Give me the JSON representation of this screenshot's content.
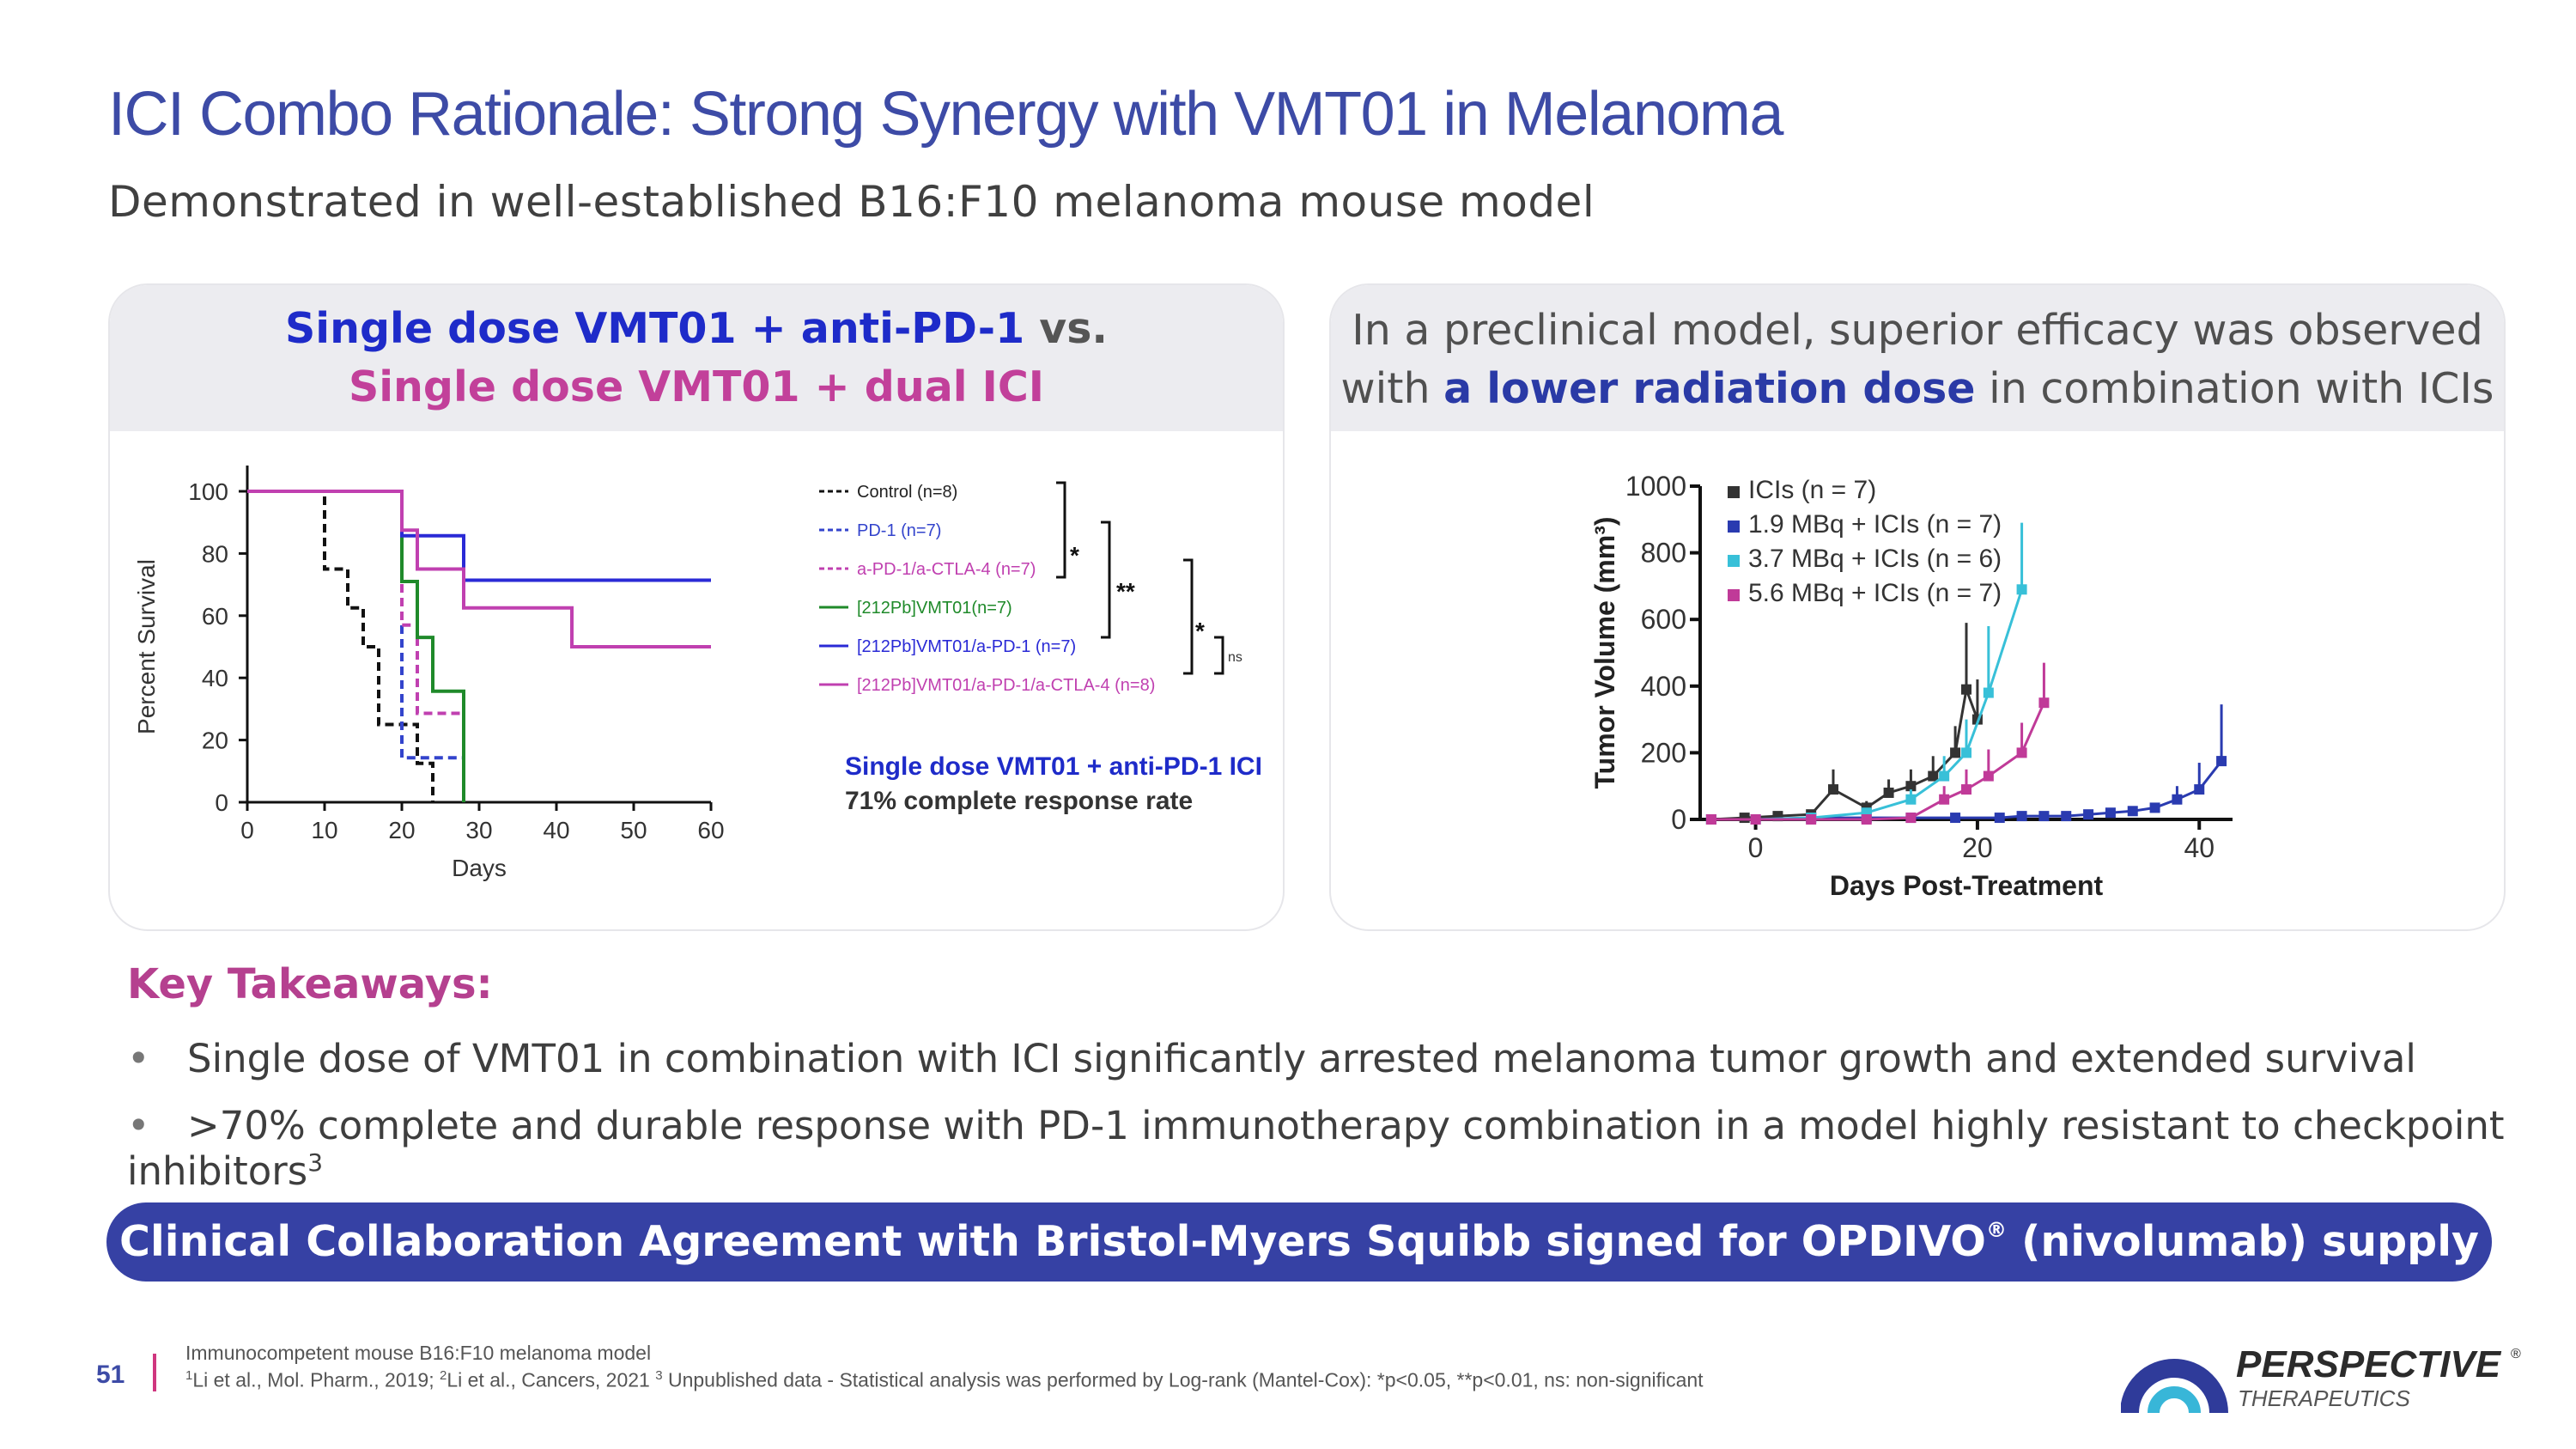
{
  "title": "ICI Combo Rationale: Strong Synergy with VMT01 in Melanoma",
  "subtitle": "Demonstrated in well-established B16:F10 melanoma mouse model",
  "left_panel": {
    "head_l1a": "Single dose VMT01 + anti-PD-1",
    "head_l1b": "vs.",
    "head_l2": "Single dose VMT01 + dual ICI",
    "callout_title": "Single dose VMT01 + anti-PD-1 ICI",
    "callout_text": "71% complete response rate",
    "sig1": "*",
    "sig2": "**",
    "sig3": "*",
    "sig4": "ns"
  },
  "right_panel": {
    "head_l1": "In a preclinical model, superior efficacy was observed",
    "head_l2a": "with",
    "head_l2b": "a lower radiation dose",
    "head_l2c": "in combination with ICIs"
  },
  "chart_data": [
    {
      "type": "line",
      "subtype": "kaplan-meier",
      "xlabel": "Days",
      "ylabel": "Percent Survival",
      "xlim": [
        0,
        60
      ],
      "ylim": [
        0,
        100
      ],
      "xticks": [
        "0",
        "10",
        "20",
        "30",
        "40",
        "50",
        "60"
      ],
      "yticks": [
        "0",
        "20",
        "40",
        "60",
        "80",
        "100"
      ],
      "legend_position": "right",
      "series": [
        {
          "name": "Control (n=8)",
          "color": "#111111",
          "dash": true,
          "steps": [
            [
              0,
              100
            ],
            [
              10,
              100
            ],
            [
              10,
              75
            ],
            [
              13,
              75
            ],
            [
              13,
              62.5
            ],
            [
              15,
              62.5
            ],
            [
              15,
              50
            ],
            [
              17,
              50
            ],
            [
              17,
              25
            ],
            [
              22,
              25
            ],
            [
              22,
              12.5
            ],
            [
              24,
              12.5
            ],
            [
              24,
              0
            ]
          ]
        },
        {
          "name": "PD-1 (n=7)",
          "color": "#3344cc",
          "dash": true,
          "steps": [
            [
              0,
              100
            ],
            [
              20,
              100
            ],
            [
              20,
              14.3
            ],
            [
              28,
              14.3
            ],
            [
              28,
              0
            ]
          ]
        },
        {
          "name": "a-PD-1/a-CTLA-4 (n=7)",
          "color": "#c040b0",
          "dash": true,
          "steps": [
            [
              0,
              100
            ],
            [
              20,
              100
            ],
            [
              20,
              57
            ],
            [
              22,
              57
            ],
            [
              22,
              28.6
            ],
            [
              28,
              28.6
            ],
            [
              28,
              0
            ]
          ]
        },
        {
          "name": "[212Pb]VMT01(n=7)",
          "color": "#1f8a2a",
          "dash": false,
          "steps": [
            [
              0,
              100
            ],
            [
              20,
              100
            ],
            [
              20,
              71
            ],
            [
              22,
              71
            ],
            [
              22,
              53
            ],
            [
              24,
              53
            ],
            [
              24,
              35.7
            ],
            [
              28,
              35.7
            ],
            [
              28,
              0
            ]
          ]
        },
        {
          "name": "[212Pb]VMT01/a-PD-1 (n=7)",
          "color": "#2a2ad6",
          "dash": false,
          "steps": [
            [
              0,
              100
            ],
            [
              20,
              100
            ],
            [
              20,
              85.7
            ],
            [
              28,
              85.7
            ],
            [
              28,
              71.4
            ],
            [
              60,
              71.4
            ]
          ]
        },
        {
          "name": "[212Pb]VMT01/a-PD-1/a-CTLA-4 (n=8)",
          "color": "#c040b0",
          "dash": false,
          "steps": [
            [
              0,
              100
            ],
            [
              20,
              100
            ],
            [
              20,
              87.5
            ],
            [
              22,
              87.5
            ],
            [
              22,
              75
            ],
            [
              28,
              75
            ],
            [
              28,
              62.5
            ],
            [
              42,
              62.5
            ],
            [
              42,
              50
            ],
            [
              60,
              50
            ]
          ]
        }
      ]
    },
    {
      "type": "line",
      "xlabel": "Days Post-Treatment",
      "ylabel": "Tumor Volume (mm³)",
      "xlim": [
        -5,
        43
      ],
      "ylim": [
        0,
        1000
      ],
      "xticks": [
        "0",
        "20",
        "40"
      ],
      "yticks": [
        "0",
        "200",
        "400",
        "600",
        "800",
        "1000"
      ],
      "legend_position": "top-left",
      "series": [
        {
          "name": "ICIs (n = 7)",
          "color": "#333333",
          "points": [
            [
              -4,
              0
            ],
            [
              -1,
              5
            ],
            [
              2,
              10
            ],
            [
              5,
              15
            ],
            [
              7,
              90
            ],
            [
              10,
              35
            ],
            [
              12,
              80
            ],
            [
              14,
              100
            ],
            [
              16,
              130
            ],
            [
              18,
              200
            ],
            [
              19,
              390
            ],
            [
              20,
              300
            ]
          ],
          "err": [
            0,
            5,
            5,
            10,
            60,
            20,
            40,
            50,
            60,
            80,
            200,
            120
          ]
        },
        {
          "name": "1.9 MBq + ICIs (n = 7)",
          "color": "#2a3bb0",
          "points": [
            [
              -4,
              0
            ],
            [
              0,
              0
            ],
            [
              5,
              5
            ],
            [
              10,
              5
            ],
            [
              14,
              5
            ],
            [
              18,
              5
            ],
            [
              22,
              5
            ],
            [
              24,
              10
            ],
            [
              26,
              10
            ],
            [
              28,
              10
            ],
            [
              30,
              15
            ],
            [
              32,
              20
            ],
            [
              34,
              25
            ],
            [
              36,
              35
            ],
            [
              38,
              60
            ],
            [
              40,
              90
            ],
            [
              42,
              175
            ]
          ],
          "err": [
            0,
            0,
            0,
            0,
            0,
            0,
            0,
            5,
            5,
            5,
            5,
            10,
            10,
            15,
            40,
            80,
            170
          ]
        },
        {
          "name": "3.7 MBq + ICIs (n = 6)",
          "color": "#38c0d8",
          "points": [
            [
              -4,
              0
            ],
            [
              0,
              0
            ],
            [
              5,
              5
            ],
            [
              10,
              20
            ],
            [
              14,
              60
            ],
            [
              17,
              130
            ],
            [
              19,
              200
            ],
            [
              21,
              380
            ],
            [
              24,
              690
            ]
          ],
          "err": [
            0,
            0,
            0,
            10,
            30,
            60,
            100,
            200,
            200
          ]
        },
        {
          "name": "5.6 MBq + ICIs (n = 7)",
          "color": "#c03a98",
          "points": [
            [
              -4,
              0
            ],
            [
              0,
              0
            ],
            [
              5,
              0
            ],
            [
              10,
              0
            ],
            [
              14,
              5
            ],
            [
              17,
              60
            ],
            [
              19,
              90
            ],
            [
              21,
              130
            ],
            [
              24,
              200
            ],
            [
              26,
              350
            ]
          ],
          "err": [
            0,
            0,
            0,
            0,
            5,
            40,
            60,
            80,
            90,
            120
          ]
        }
      ]
    }
  ],
  "takeaways": {
    "heading": "Key Takeaways:",
    "bullet_char": "•",
    "b1": "Single dose of VMT01 in combination with ICI significantly arrested melanoma tumor growth and extended survival",
    "b2": ">70% complete and durable response with PD-1 immunotherapy combination in a model highly resistant to checkpoint inhibitors",
    "b2_sup": "3"
  },
  "banner": {
    "text_a": "Clinical Collaboration Agreement with Bristol-Myers Squibb signed for OPDIVO",
    "reg": "®",
    "text_b": " (nivolumab) supply"
  },
  "footer": {
    "page": "51",
    "fn1": "Immunocompetent mouse B16:F10 melanoma model",
    "fn2a": "Li et al., Mol. Pharm., 2019; ",
    "fn2b": "Li et al., Cancers, 2021 ",
    "fn2c": " Unpublished data - Statistical analysis was performed by Log-rank (Mantel-Cox): *p<0.05, **p<0.01, ns: non-significant",
    "sup1": "1",
    "sup2": "2",
    "sup3": "3"
  },
  "logo": {
    "name": "PERSPECTIVE",
    "reg": "®",
    "sub": "THERAPEUTICS"
  },
  "colors": {
    "title": "#3d4ba6",
    "accent_pink": "#b5408f",
    "banner": "#3641a4",
    "accent_blue": "#1e2bc9"
  }
}
